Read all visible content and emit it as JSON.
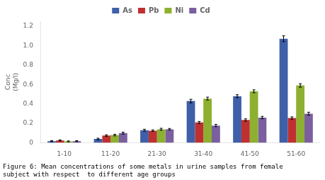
{
  "chart_data": {
    "type": "bar",
    "categories": [
      "1-10",
      "11-20",
      "21-30",
      "31-40",
      "41-50",
      "51-60"
    ],
    "series": [
      {
        "name": "As",
        "color": "#3f5fa8",
        "values": [
          0.018,
          0.04,
          0.13,
          0.43,
          0.48,
          1.07
        ],
        "errors": [
          0.005,
          0.008,
          0.01,
          0.018,
          0.015,
          0.03
        ]
      },
      {
        "name": "Pb",
        "color": "#bf3030",
        "values": [
          0.025,
          0.075,
          0.125,
          0.21,
          0.235,
          0.255
        ],
        "errors": [
          0.005,
          0.008,
          0.008,
          0.01,
          0.012,
          0.012
        ]
      },
      {
        "name": "Ni",
        "color": "#8db030",
        "values": [
          0.015,
          0.08,
          0.14,
          0.455,
          0.53,
          0.59
        ],
        "errors": [
          0.005,
          0.008,
          0.01,
          0.015,
          0.015,
          0.018
        ]
      },
      {
        "name": "Cd",
        "color": "#7b5fa0",
        "values": [
          0.018,
          0.1,
          0.14,
          0.178,
          0.26,
          0.3
        ],
        "errors": [
          0.005,
          0.01,
          0.008,
          0.012,
          0.012,
          0.015
        ]
      }
    ],
    "ylabel": "Conc\n(Mg/l)",
    "ylim": [
      0,
      1.25
    ],
    "yticks": [
      0,
      0.2,
      0.4,
      0.6,
      0.8,
      {
        "value": 1,
        "label": "1.0"
      },
      1.2
    ],
    "caption": "Figure 6: Mean concentrations of some metals in urine samples from female\nsubject with respect  to different age groups",
    "grid": false,
    "legend": "top"
  }
}
